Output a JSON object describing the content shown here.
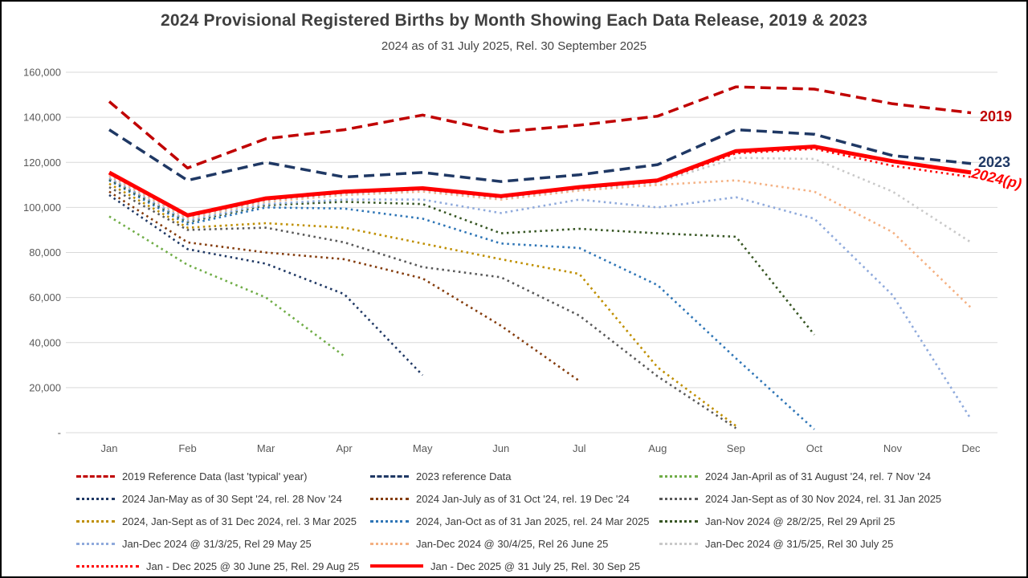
{
  "title": "2024 Provisional Registered Births by Month Showing Each Data Release, 2019 & 2023",
  "subtitle": "2024 as of 31 July 2025, Rel. 30 September 2025",
  "colors": {
    "title_text": "#3f3f3f",
    "axis_text": "#595959",
    "gridline": "#d9d9d9",
    "legend_text": "#3a3a3a",
    "frame_border": "#000000"
  },
  "chart_data": {
    "type": "line",
    "grid": true,
    "legend_position": "bottom",
    "categories": [
      "Jan",
      "Feb",
      "Mar",
      "Apr",
      "May",
      "Jun",
      "Jul",
      "Aug",
      "Sep",
      "Oct",
      "Nov",
      "Dec"
    ],
    "y_axis": {
      "min": 0,
      "max": 160000,
      "step": 20000,
      "tick_labels_top_down": [
        "160,000",
        "140,000",
        "120,000",
        "100,000",
        "80,000",
        "60,000",
        "40,000",
        "20,000",
        "-"
      ]
    },
    "end_labels": [
      {
        "text": "2019",
        "color": "#C00000",
        "x": 1218,
        "y": 149,
        "rotate": 0,
        "italic": false
      },
      {
        "text": "2023",
        "color": "#1F3864",
        "x": 1216,
        "y": 206,
        "rotate": 0,
        "italic": false
      },
      {
        "text": "2024(p)",
        "color": "#FF0000",
        "x": 1207,
        "y": 219,
        "rotate": 13,
        "italic": true
      }
    ],
    "series": [
      {
        "id": "ref-2019",
        "name": "2019  Reference Data (last 'typical' year)",
        "color": "#C00000",
        "line_style": "dashed",
        "swatch_w": 48,
        "values": [
          147000,
          117500,
          130500,
          134500,
          141000,
          133500,
          136500,
          140500,
          153500,
          152500,
          146000,
          142000
        ]
      },
      {
        "id": "ref-2023",
        "name": "2023 reference Data",
        "color": "#1F3864",
        "line_style": "dashed",
        "swatch_w": 48,
        "values": [
          134500,
          112000,
          120000,
          113500,
          115500,
          111500,
          114500,
          119000,
          134500,
          132500,
          123000,
          119500
        ]
      },
      {
        "id": "rel-2024-jan-apr",
        "name": "2024 Jan-April as of 31 August '24, rel. 7 Nov '24",
        "color": "#70AD47",
        "line_style": "dotted",
        "swatch_w": 48,
        "values": [
          96000,
          74500,
          60000,
          34000,
          null,
          null,
          null,
          null,
          null,
          null,
          null,
          null
        ]
      },
      {
        "id": "rel-2024-jan-may",
        "name": "2024 Jan-May as of 30 Sept '24, rel. 28 Nov '24",
        "color": "#1F3864",
        "line_style": "dotted",
        "swatch_w": 48,
        "values": [
          105500,
          81500,
          75000,
          61500,
          25500,
          null,
          null,
          null,
          null,
          null,
          null,
          null
        ]
      },
      {
        "id": "rel-2024-jan-jul",
        "name": "2024 Jan-July as of 31 Oct '24, rel. 19 Dec '24",
        "color": "#843C0C",
        "line_style": "dotted",
        "swatch_w": 48,
        "values": [
          107000,
          84500,
          80000,
          77000,
          68500,
          47500,
          23000,
          null,
          null,
          null,
          null,
          null
        ]
      },
      {
        "id": "rel-2024-jan-sep-nov",
        "name": "2024 Jan-Sept as of 30 Nov 2024, rel. 31 Jan 2025",
        "color": "#595959",
        "line_style": "dotted",
        "swatch_w": 48,
        "values": [
          109000,
          90000,
          91000,
          84500,
          73500,
          69000,
          52000,
          25000,
          2000,
          null,
          null,
          null
        ]
      },
      {
        "id": "rel-2024-jan-sep-dec",
        "name": "2024, Jan-Sept as of 31 Dec 2024, rel. 3 Mar 2025",
        "color": "#BF8F00",
        "line_style": "dotted",
        "swatch_w": 48,
        "values": [
          110500,
          91000,
          93000,
          91000,
          84000,
          77000,
          70500,
          29000,
          3000,
          null,
          null,
          null
        ]
      },
      {
        "id": "rel-2024-jan-oct",
        "name": "2024, Jan-Oct as of 31 Jan 2025, rel. 24 Mar 2025",
        "color": "#2E75B6",
        "line_style": "dotted",
        "swatch_w": 48,
        "values": [
          112000,
          92500,
          100000,
          99500,
          95000,
          84000,
          82000,
          65500,
          33000,
          1500,
          null,
          null
        ]
      },
      {
        "id": "rel-2024-jan-nov",
        "name": "Jan-Nov 2024 @ 28/2/25, Rel 29 April 25",
        "color": "#375623",
        "line_style": "dotted",
        "swatch_w": 48,
        "values": [
          112500,
          93500,
          101000,
          102500,
          101500,
          88500,
          90500,
          88500,
          87000,
          43500,
          null,
          null
        ]
      },
      {
        "id": "rel-2024-dec-mar",
        "name": "Jan-Dec 2024 @ 31/3/25, Rel 29 May 25",
        "color": "#8FAADC",
        "line_style": "dotted",
        "swatch_w": 48,
        "values": [
          113000,
          94000,
          101500,
          103500,
          103500,
          97500,
          103500,
          100000,
          104500,
          95000,
          61000,
          6000
        ]
      },
      {
        "id": "rel-2024-dec-apr",
        "name": "Jan-Dec 2024 @ 30/4/25, Rel 26 June 25",
        "color": "#F4B183",
        "line_style": "dotted",
        "swatch_w": 48,
        "values": [
          114000,
          95000,
          102500,
          105500,
          107000,
          103500,
          107500,
          110000,
          112000,
          107000,
          89000,
          55500
        ]
      },
      {
        "id": "rel-2024-dec-may",
        "name": "Jan-Dec 2024 @ 31/5/25, Rel 30 July 25",
        "color": "#C9C9C9",
        "line_style": "dotted",
        "swatch_w": 48,
        "values": [
          114500,
          95500,
          103000,
          106000,
          107500,
          104000,
          108000,
          111000,
          122000,
          121500,
          107000,
          84500
        ]
      },
      {
        "id": "rel-2025-jun",
        "name": "Jan - Dec 2025 @ 30 June 25, Rel. 29 Aug 25",
        "color": "#FF0000",
        "line_style": "dotted",
        "swatch_w": 78,
        "values": [
          115000,
          96000,
          103500,
          106500,
          108000,
          104500,
          108500,
          111500,
          124000,
          126000,
          118500,
          113500
        ]
      },
      {
        "id": "rel-2025-jul",
        "name": "Jan - Dec 2025 @ 31 July 25, Rel. 30 Sep 25",
        "color": "#FF0000",
        "line_style": "solid",
        "swatch_w": 66,
        "values": [
          115500,
          96500,
          104000,
          107000,
          108500,
          105000,
          109000,
          112000,
          125000,
          127000,
          120500,
          115500
        ]
      }
    ]
  }
}
